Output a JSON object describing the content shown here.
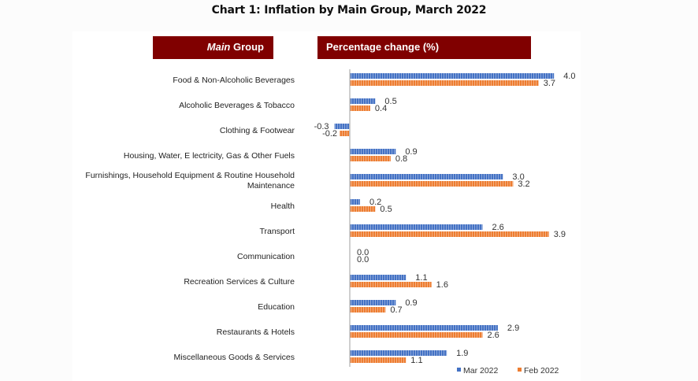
{
  "title": "Chart 1: Inflation by Main Group, March 2022",
  "headers": {
    "main_group_italic": "Main",
    "main_group_rest": " Group",
    "percentage": "Percentage change (%)"
  },
  "colors": {
    "header_bg": "#800000",
    "mar": "#4472C4",
    "feb": "#ED7D31"
  },
  "chart_data": {
    "type": "bar",
    "orientation": "horizontal",
    "title": "Chart 1: Inflation by Main Group, March 2022",
    "xlabel": "Percentage change (%)",
    "ylabel": "Main Group",
    "categories": [
      "Food & Non-Alcoholic Beverages",
      "Alcoholic Beverages & Tobacco",
      "Clothing & Footwear",
      "Housing, Water, E lectricity, Gas & Other Fuels",
      "Furnishings, Household Equipment & Routine Household Maintenance",
      "Health",
      "Transport",
      "Communication",
      "Recreation Services & Culture",
      "Education",
      "Restaurants & Hotels",
      "Miscellaneous Goods & Services"
    ],
    "category_lines": [
      [
        "Food & Non-Alcoholic Beverages"
      ],
      [
        "Alcoholic Beverages & Tobacco"
      ],
      [
        "Clothing & Footwear"
      ],
      [
        "Housing, Water, E lectricity, Gas & Other Fuels"
      ],
      [
        "Furnishings, Household Equipment & Routine Household",
        "Maintenance"
      ],
      [
        "Health"
      ],
      [
        "Transport"
      ],
      [
        "Communication"
      ],
      [
        "Recreation Services & Culture"
      ],
      [
        "Education"
      ],
      [
        "Restaurants & Hotels"
      ],
      [
        "Miscellaneous Goods & Services"
      ]
    ],
    "series": [
      {
        "name": "Mar 2022",
        "values": [
          4.0,
          0.5,
          -0.3,
          0.9,
          3.0,
          0.2,
          2.6,
          0.0,
          1.1,
          0.9,
          2.9,
          1.9
        ],
        "labels": [
          "4.0",
          "0.5",
          "-0.3",
          "0.9",
          "3.0",
          "0.2",
          "2.6",
          "0.0",
          "1.1",
          "0.9",
          "2.9",
          "1.9"
        ]
      },
      {
        "name": "Feb 2022",
        "values": [
          3.7,
          0.4,
          -0.2,
          0.8,
          3.2,
          0.5,
          3.9,
          0.0,
          1.6,
          0.7,
          2.6,
          1.1
        ],
        "labels": [
          "3.7",
          "0.4",
          "-0.2",
          "0.8",
          "3.2",
          "0.5",
          "3.9",
          "0.0",
          "1.6",
          "0.7",
          "2.6",
          "1.1"
        ]
      }
    ],
    "xlim": [
      -0.3,
      4.0
    ],
    "grid": false,
    "legend_position": "bottom-right"
  }
}
